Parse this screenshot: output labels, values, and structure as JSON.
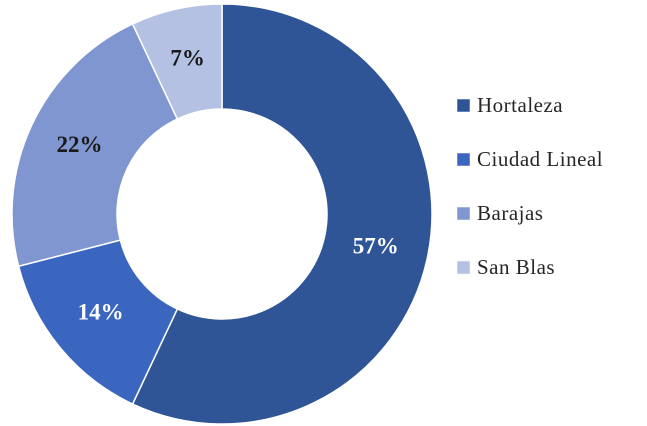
{
  "chart_data": {
    "type": "donut",
    "categories": [
      "Hortaleza",
      "Ciudad Lineal",
      "Barajas",
      "San Blas"
    ],
    "values": [
      57,
      14,
      22,
      7
    ],
    "value_labels": [
      "57%",
      "14%",
      "22%",
      "7%"
    ],
    "colors": [
      "#2f5597",
      "#3a66c0",
      "#7f96d0",
      "#b4c1e3"
    ],
    "label_colors": [
      "#ffffff",
      "#ffffff",
      "#1a1a1a",
      "#1a1a1a"
    ],
    "legend": "right"
  }
}
